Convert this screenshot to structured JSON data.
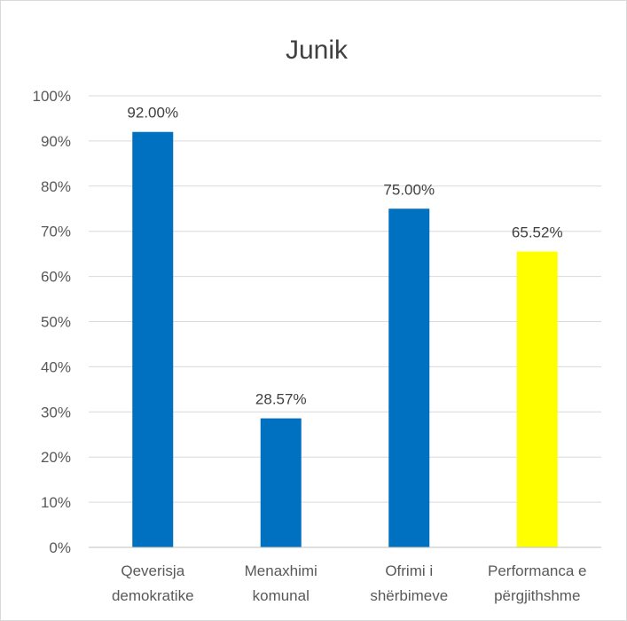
{
  "chart_data": {
    "type": "bar",
    "title": "Junik",
    "xlabel": "",
    "ylabel": "",
    "ylim": [
      0,
      100
    ],
    "yticks": [
      "0%",
      "10%",
      "20%",
      "30%",
      "40%",
      "50%",
      "60%",
      "70%",
      "80%",
      "90%",
      "100%"
    ],
    "categories": [
      [
        "Qeverisja",
        "demokratike"
      ],
      [
        "Menaxhimi",
        "komunal"
      ],
      [
        "Ofrimi i",
        "shërbimeve"
      ],
      [
        "Performanca e",
        "përgjithshme"
      ]
    ],
    "values": [
      92.0,
      28.57,
      75.0,
      65.52
    ],
    "data_labels": [
      "92.00%",
      "28.57%",
      "75.00%",
      "65.52%"
    ],
    "colors": [
      "#0070c0",
      "#0070c0",
      "#0070c0",
      "#ffff00"
    ],
    "grid": true,
    "legend": "none"
  }
}
